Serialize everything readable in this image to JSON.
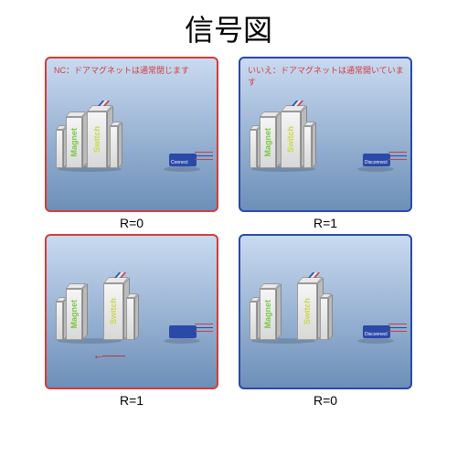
{
  "title": "信号図",
  "panels": [
    {
      "header": "NC：ドアマグネットは通常閉じます",
      "header_color": "#d43c3c",
      "border_color": "#d43c3c",
      "r_label": "R=0",
      "magnet_label": "Magnet",
      "switch_label": "Switch",
      "magnet_text_color": "#7cc843",
      "switch_text_color": "#c8d84a",
      "separated": false,
      "connector_color": "#2a4aa8",
      "connector_label": "Connect",
      "arrow": null
    },
    {
      "header": "いいえ：ドアマグネットは通常開いています",
      "header_color": "#d43c3c",
      "border_color": "#2a4aa8",
      "r_label": "R=1",
      "magnet_label": "Magnet",
      "switch_label": "Switch",
      "magnet_text_color": "#7cc843",
      "switch_text_color": "#c8d84a",
      "separated": false,
      "connector_color": "#2a4aa8",
      "connector_label": "Disconnect",
      "arrow": null
    },
    {
      "header": "",
      "header_color": "#d43c3c",
      "border_color": "#d43c3c",
      "r_label": "R=1",
      "magnet_label": "Magnet",
      "switch_label": "Switch",
      "magnet_text_color": "#7cc843",
      "switch_text_color": "#c8d84a",
      "separated": true,
      "connector_color": "#2a4aa8",
      "connector_label": "",
      "arrow": "←",
      "arrow_color": "#c03030"
    },
    {
      "header": "",
      "header_color": "#d43c3c",
      "border_color": "#2a4aa8",
      "r_label": "R=0",
      "magnet_label": "Magnet",
      "switch_label": "Switch",
      "magnet_text_color": "#7cc843",
      "switch_text_color": "#c8d84a",
      "separated": true,
      "connector_color": "#2a4aa8",
      "connector_label": "Disconnect",
      "arrow": null
    }
  ],
  "colors": {
    "wire_red": "#d43c3c",
    "wire_blue": "#2a4aa8",
    "wire_white": "#eeeeee"
  }
}
